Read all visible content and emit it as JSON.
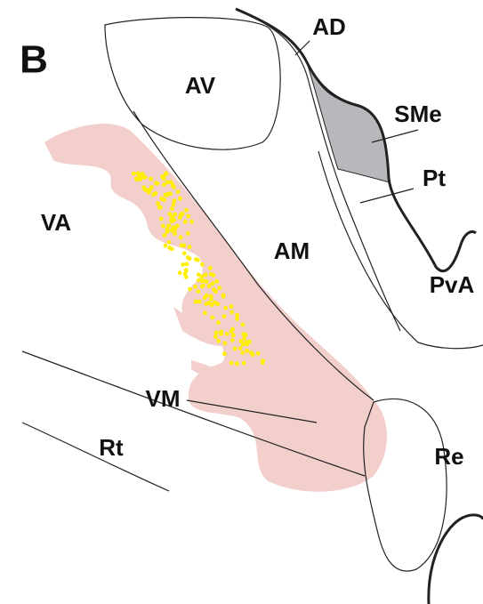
{
  "panel_label": "B",
  "regions": {
    "AD": "AD",
    "AV": "AV",
    "SMe": "SMe",
    "Pt": "Pt",
    "VA": "VA",
    "AM": "AM",
    "PvA": "PvA",
    "VM": "VM",
    "Rt": "Rt",
    "Re": "Re"
  }
}
